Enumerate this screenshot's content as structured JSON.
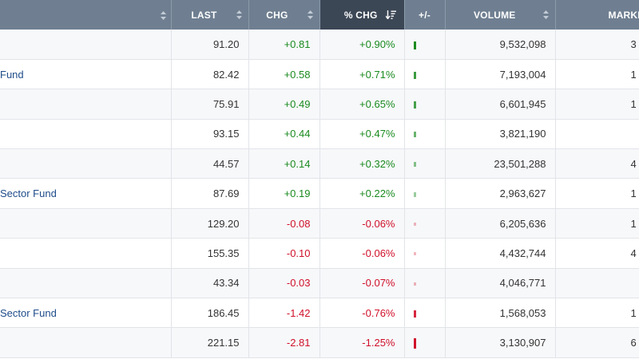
{
  "header": {
    "last": "LAST",
    "chg": "CHG",
    "pct_chg": "% CHG",
    "plus_minus": "+/-",
    "volume": "VOLUME",
    "market": "MARKE"
  },
  "rows": [
    {
      "name": "",
      "last": "91.20",
      "chg": "+0.81",
      "pct": "+0.90%",
      "volume": "9,532,098",
      "market": "3",
      "dir": "up",
      "bar_level": 0.9
    },
    {
      "name": "Fund",
      "last": "82.42",
      "chg": "+0.58",
      "pct": "+0.71%",
      "volume": "7,193,004",
      "market": "1",
      "dir": "up",
      "bar_level": 0.71
    },
    {
      "name": "",
      "last": "75.91",
      "chg": "+0.49",
      "pct": "+0.65%",
      "volume": "6,601,945",
      "market": "1",
      "dir": "up",
      "bar_level": 0.65
    },
    {
      "name": "",
      "last": "93.15",
      "chg": "+0.44",
      "pct": "+0.47%",
      "volume": "3,821,190",
      "market": "",
      "dir": "up",
      "bar_level": 0.47
    },
    {
      "name": "",
      "last": "44.57",
      "chg": "+0.14",
      "pct": "+0.32%",
      "volume": "23,501,288",
      "market": "4",
      "dir": "up",
      "bar_level": 0.32
    },
    {
      "name": "Sector Fund",
      "last": "87.69",
      "chg": "+0.19",
      "pct": "+0.22%",
      "volume": "2,963,627",
      "market": "1",
      "dir": "up",
      "bar_level": 0.22
    },
    {
      "name": "",
      "last": "129.20",
      "chg": "-0.08",
      "pct": "-0.06%",
      "volume": "6,205,636",
      "market": "1",
      "dir": "down",
      "bar_level": 0.06
    },
    {
      "name": "",
      "last": "155.35",
      "chg": "-0.10",
      "pct": "-0.06%",
      "volume": "4,432,744",
      "market": "4",
      "dir": "down",
      "bar_level": 0.06
    },
    {
      "name": "",
      "last": "43.34",
      "chg": "-0.03",
      "pct": "-0.07%",
      "volume": "4,046,771",
      "market": "",
      "dir": "down",
      "bar_level": 0.07
    },
    {
      "name": "Sector Fund",
      "last": "186.45",
      "chg": "-1.42",
      "pct": "-0.76%",
      "volume": "1,568,053",
      "market": "1",
      "dir": "down",
      "bar_level": 0.76
    },
    {
      "name": "",
      "last": "221.15",
      "chg": "-2.81",
      "pct": "-1.25%",
      "volume": "3,130,907",
      "market": "6",
      "dir": "down",
      "bar_level": 1.25
    }
  ],
  "colors": {
    "header_bg": "#6f7f91",
    "header_active_bg": "#3c4756",
    "positive": "#1a8a1f",
    "negative": "#d0102a",
    "name_link": "#1e4c8a"
  },
  "icons": {
    "sort": "sort-updown-icon",
    "sort_desc": "sort-descending-icon"
  }
}
